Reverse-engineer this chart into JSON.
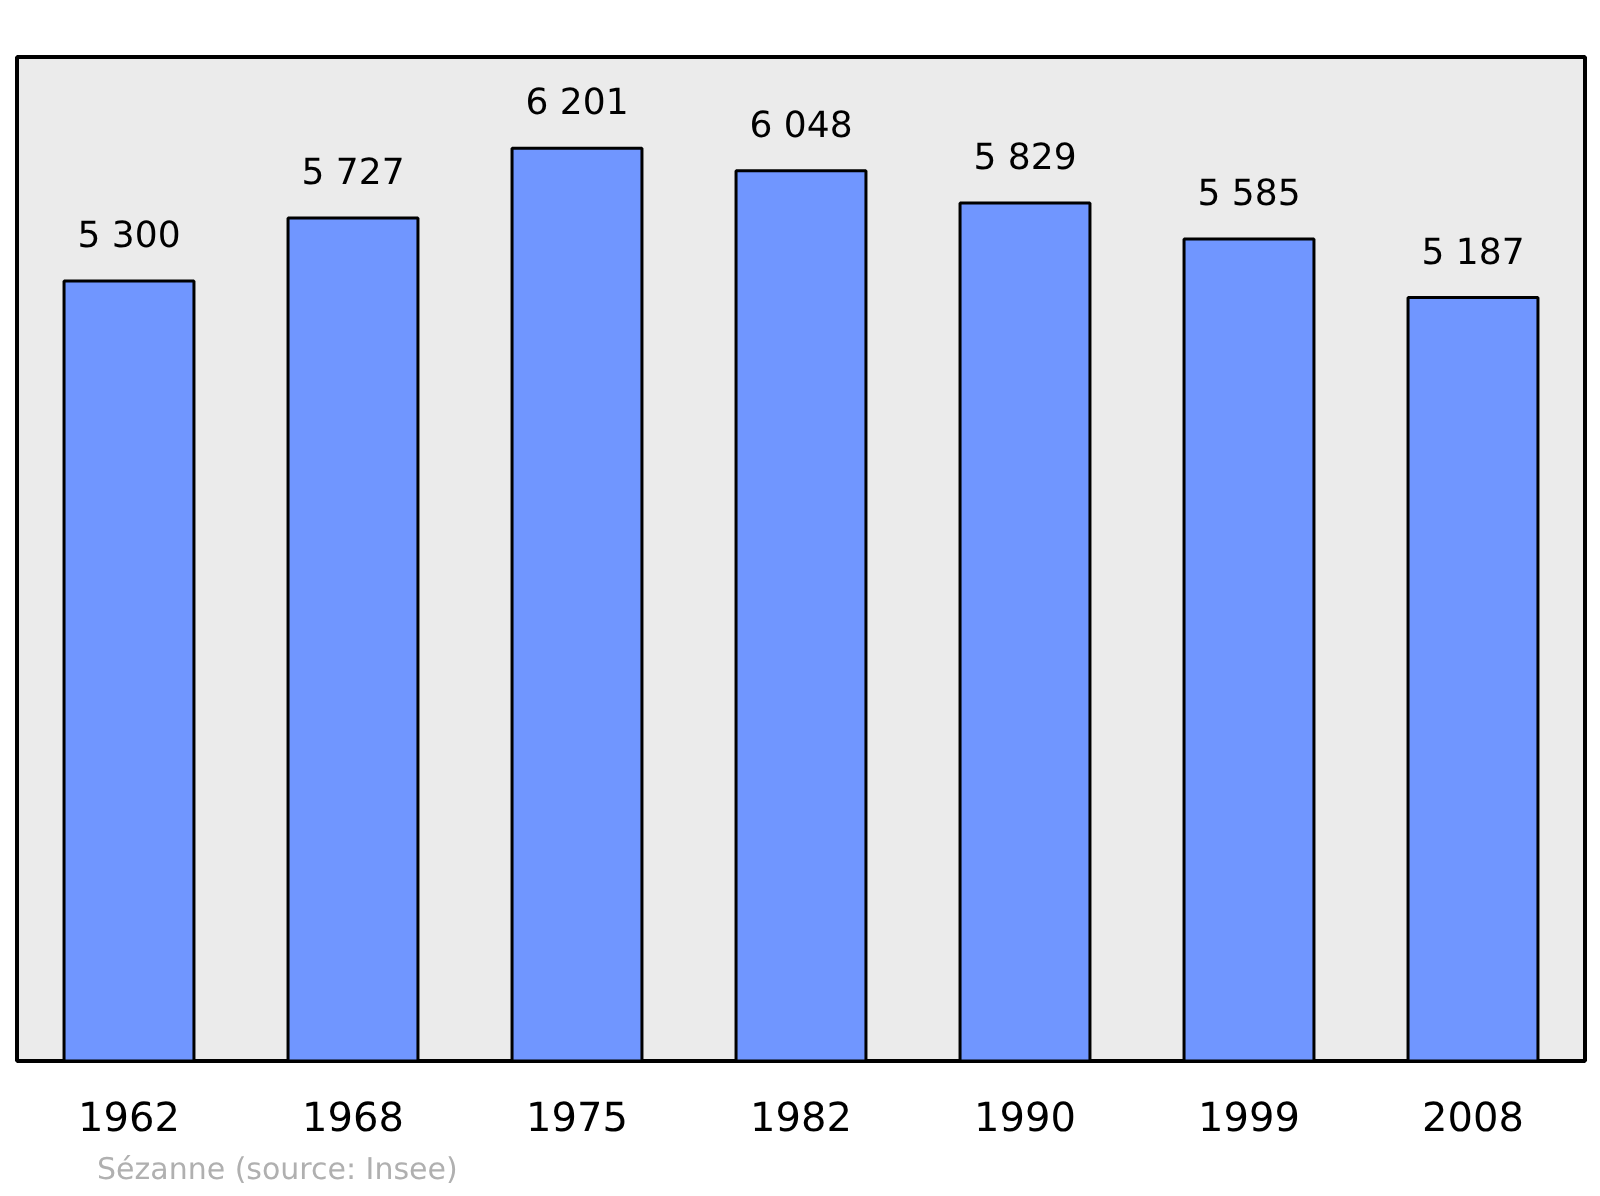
{
  "chart_data": {
    "type": "bar",
    "categories": [
      "1962",
      "1968",
      "1975",
      "1982",
      "1990",
      "1999",
      "2008"
    ],
    "values": [
      5300,
      5727,
      6201,
      6048,
      5829,
      5585,
      5187
    ],
    "value_labels": [
      "5 300",
      "5 727",
      "6 201",
      "6 048",
      "5 829",
      "5 585",
      "5 187"
    ],
    "color": "#7096ff",
    "grid": false,
    "annotations": [
      "Sézanne    (source: Insee)"
    ]
  }
}
